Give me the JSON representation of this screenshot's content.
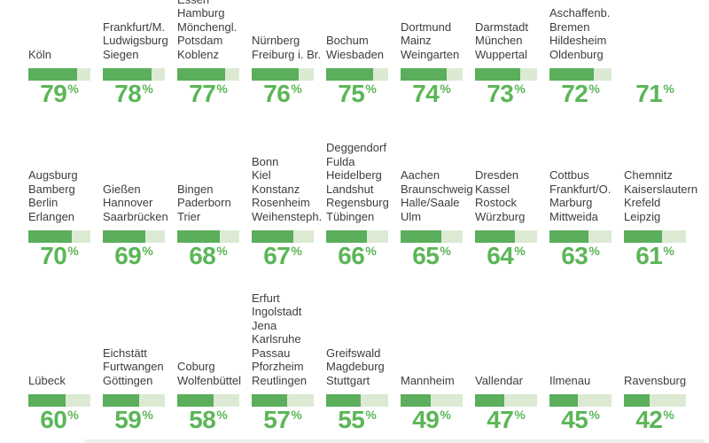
{
  "title": "Shares by university city (infographic bar grid)",
  "unit": "%",
  "colors": {
    "bar_fill": "#5BAE5B",
    "bar_track": "#DCEAD4",
    "percent_text": "#5CB657",
    "city_text": "#3D3D3C"
  },
  "chart_data": {
    "type": "bar",
    "unit": "%",
    "value_range": [
      0,
      100
    ],
    "orientation": "horizontal-progress",
    "rows": [
      {
        "items": [
          {
            "cities": [
              "Köln"
            ],
            "value": 79,
            "bar_visible": true
          },
          {
            "cities": [
              "Frankfurt/M.",
              "Ludwigsburg",
              "Siegen"
            ],
            "value": 78,
            "bar_visible": true
          },
          {
            "cities": [
              "Essen",
              "Hamburg",
              "Mönchengl.",
              "Potsdam",
              "Koblenz"
            ],
            "value": 77,
            "bar_visible": true
          },
          {
            "cities": [
              "Nürnberg",
              "Freiburg i. Br."
            ],
            "value": 76,
            "bar_visible": true
          },
          {
            "cities": [
              "Bochum",
              "Wiesbaden"
            ],
            "value": 75,
            "bar_visible": true
          },
          {
            "cities": [
              "Dortmund",
              "Mainz",
              "Weingarten"
            ],
            "value": 74,
            "bar_visible": true
          },
          {
            "cities": [
              "Darmstadt",
              "München",
              "Wuppertal"
            ],
            "value": 73,
            "bar_visible": true
          },
          {
            "cities": [
              "Aschaffenb.",
              "Bremen",
              "Hildesheim",
              "Oldenburg"
            ],
            "value": 72,
            "bar_visible": true
          },
          {
            "cities": [],
            "value": 71,
            "bar_visible": false
          }
        ]
      },
      {
        "items": [
          {
            "cities": [
              "Augsburg",
              "Bamberg",
              "Berlin",
              "Erlangen"
            ],
            "value": 70,
            "bar_visible": true
          },
          {
            "cities": [
              "Gießen",
              "Hannover",
              "Saarbrücken"
            ],
            "value": 69,
            "bar_visible": true
          },
          {
            "cities": [
              "Bingen",
              "Paderborn",
              "Trier"
            ],
            "value": 68,
            "bar_visible": true
          },
          {
            "cities": [
              "Bonn",
              "Kiel",
              "Konstanz",
              "Rosenheim",
              "Weihensteph."
            ],
            "value": 67,
            "bar_visible": true
          },
          {
            "cities": [
              "Deggendorf",
              "Fulda",
              "Heidelberg",
              "Landshut",
              "Regensburg",
              "Tübingen"
            ],
            "value": 66,
            "bar_visible": true
          },
          {
            "cities": [
              "Aachen",
              "Braunschweig",
              "Halle/Saale",
              "Ulm"
            ],
            "value": 65,
            "bar_visible": true
          },
          {
            "cities": [
              "Dresden",
              "Kassel",
              "Rostock",
              "Würzburg"
            ],
            "value": 64,
            "bar_visible": true
          },
          {
            "cities": [
              "Cottbus",
              "Frankfurt/O.",
              "Marburg",
              "Mittweida"
            ],
            "value": 63,
            "bar_visible": true
          },
          {
            "cities": [
              "Chemnitz",
              "Kaiserslautern",
              "Krefeld",
              "Leipzig"
            ],
            "value": 61,
            "bar_visible": true
          }
        ]
      },
      {
        "items": [
          {
            "cities": [
              "Lübeck"
            ],
            "value": 60,
            "bar_visible": true
          },
          {
            "cities": [
              "Eichstätt",
              "Furtwangen",
              "Göttingen"
            ],
            "value": 59,
            "bar_visible": true
          },
          {
            "cities": [
              "Coburg",
              "Wolfenbüttel"
            ],
            "value": 58,
            "bar_visible": true
          },
          {
            "cities": [
              "Erfurt",
              "Ingolstadt",
              "Jena",
              "Karlsruhe",
              "Passau",
              "Pforzheim",
              "Reutlingen"
            ],
            "value": 57,
            "bar_visible": true
          },
          {
            "cities": [
              "Greifswald",
              "Magdeburg",
              "Stuttgart"
            ],
            "value": 55,
            "bar_visible": true
          },
          {
            "cities": [
              "Mannheim"
            ],
            "value": 49,
            "bar_visible": true
          },
          {
            "cities": [
              "Vallendar"
            ],
            "value": 47,
            "bar_visible": true
          },
          {
            "cities": [
              "Ilmenau"
            ],
            "value": 45,
            "bar_visible": true
          },
          {
            "cities": [
              "Ravensburg"
            ],
            "value": 42,
            "bar_visible": true
          }
        ]
      }
    ]
  }
}
